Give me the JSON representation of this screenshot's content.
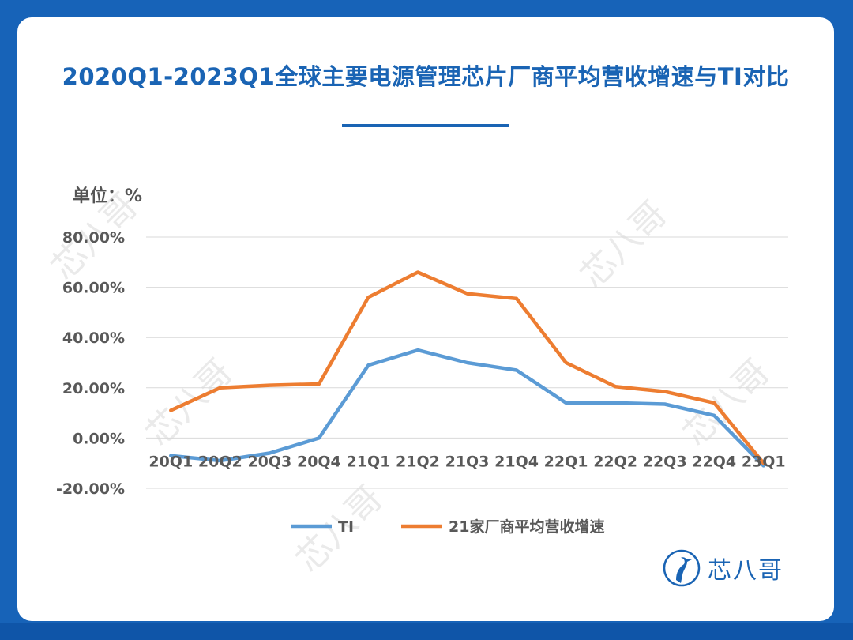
{
  "title": "2020Q1-2023Q1全球主要电源管理芯片厂商平均营收增速与TI对比",
  "unit_label": "单位：%",
  "logo_text": "芯八哥",
  "watermark_text": "芯八哥",
  "colors": {
    "background": "#1763b8",
    "accent": "#1a64b4",
    "ti": "#5b9bd5",
    "avg": "#ed7d31"
  },
  "chart_data": {
    "type": "line",
    "title": "2020Q1-2023Q1全球主要电源管理芯片厂商平均营收增速与TI对比",
    "ylabel": "单位：%",
    "ylim": [
      -20,
      80
    ],
    "yticks": [
      "80.00%",
      "60.00%",
      "40.00%",
      "20.00%",
      "0.00%",
      "-20.00%"
    ],
    "ytick_values": [
      80,
      60,
      40,
      20,
      0,
      -20
    ],
    "categories": [
      "20Q1",
      "20Q2",
      "20Q3",
      "20Q4",
      "21Q1",
      "21Q2",
      "21Q3",
      "21Q4",
      "22Q1",
      "22Q2",
      "22Q3",
      "22Q4",
      "23Q1"
    ],
    "series": [
      {
        "name": "TI",
        "color": "#5b9bd5",
        "values": [
          -7,
          -9,
          -6,
          0,
          29,
          35,
          30,
          27,
          14,
          14,
          13.5,
          9,
          -11
        ]
      },
      {
        "name": "21家厂商平均营收增速",
        "color": "#ed7d31",
        "values": [
          11,
          20,
          21,
          21.5,
          56,
          66,
          57.5,
          55.5,
          30,
          20.5,
          18.5,
          14,
          -10
        ]
      }
    ],
    "grid": true,
    "legend_position": "bottom"
  }
}
